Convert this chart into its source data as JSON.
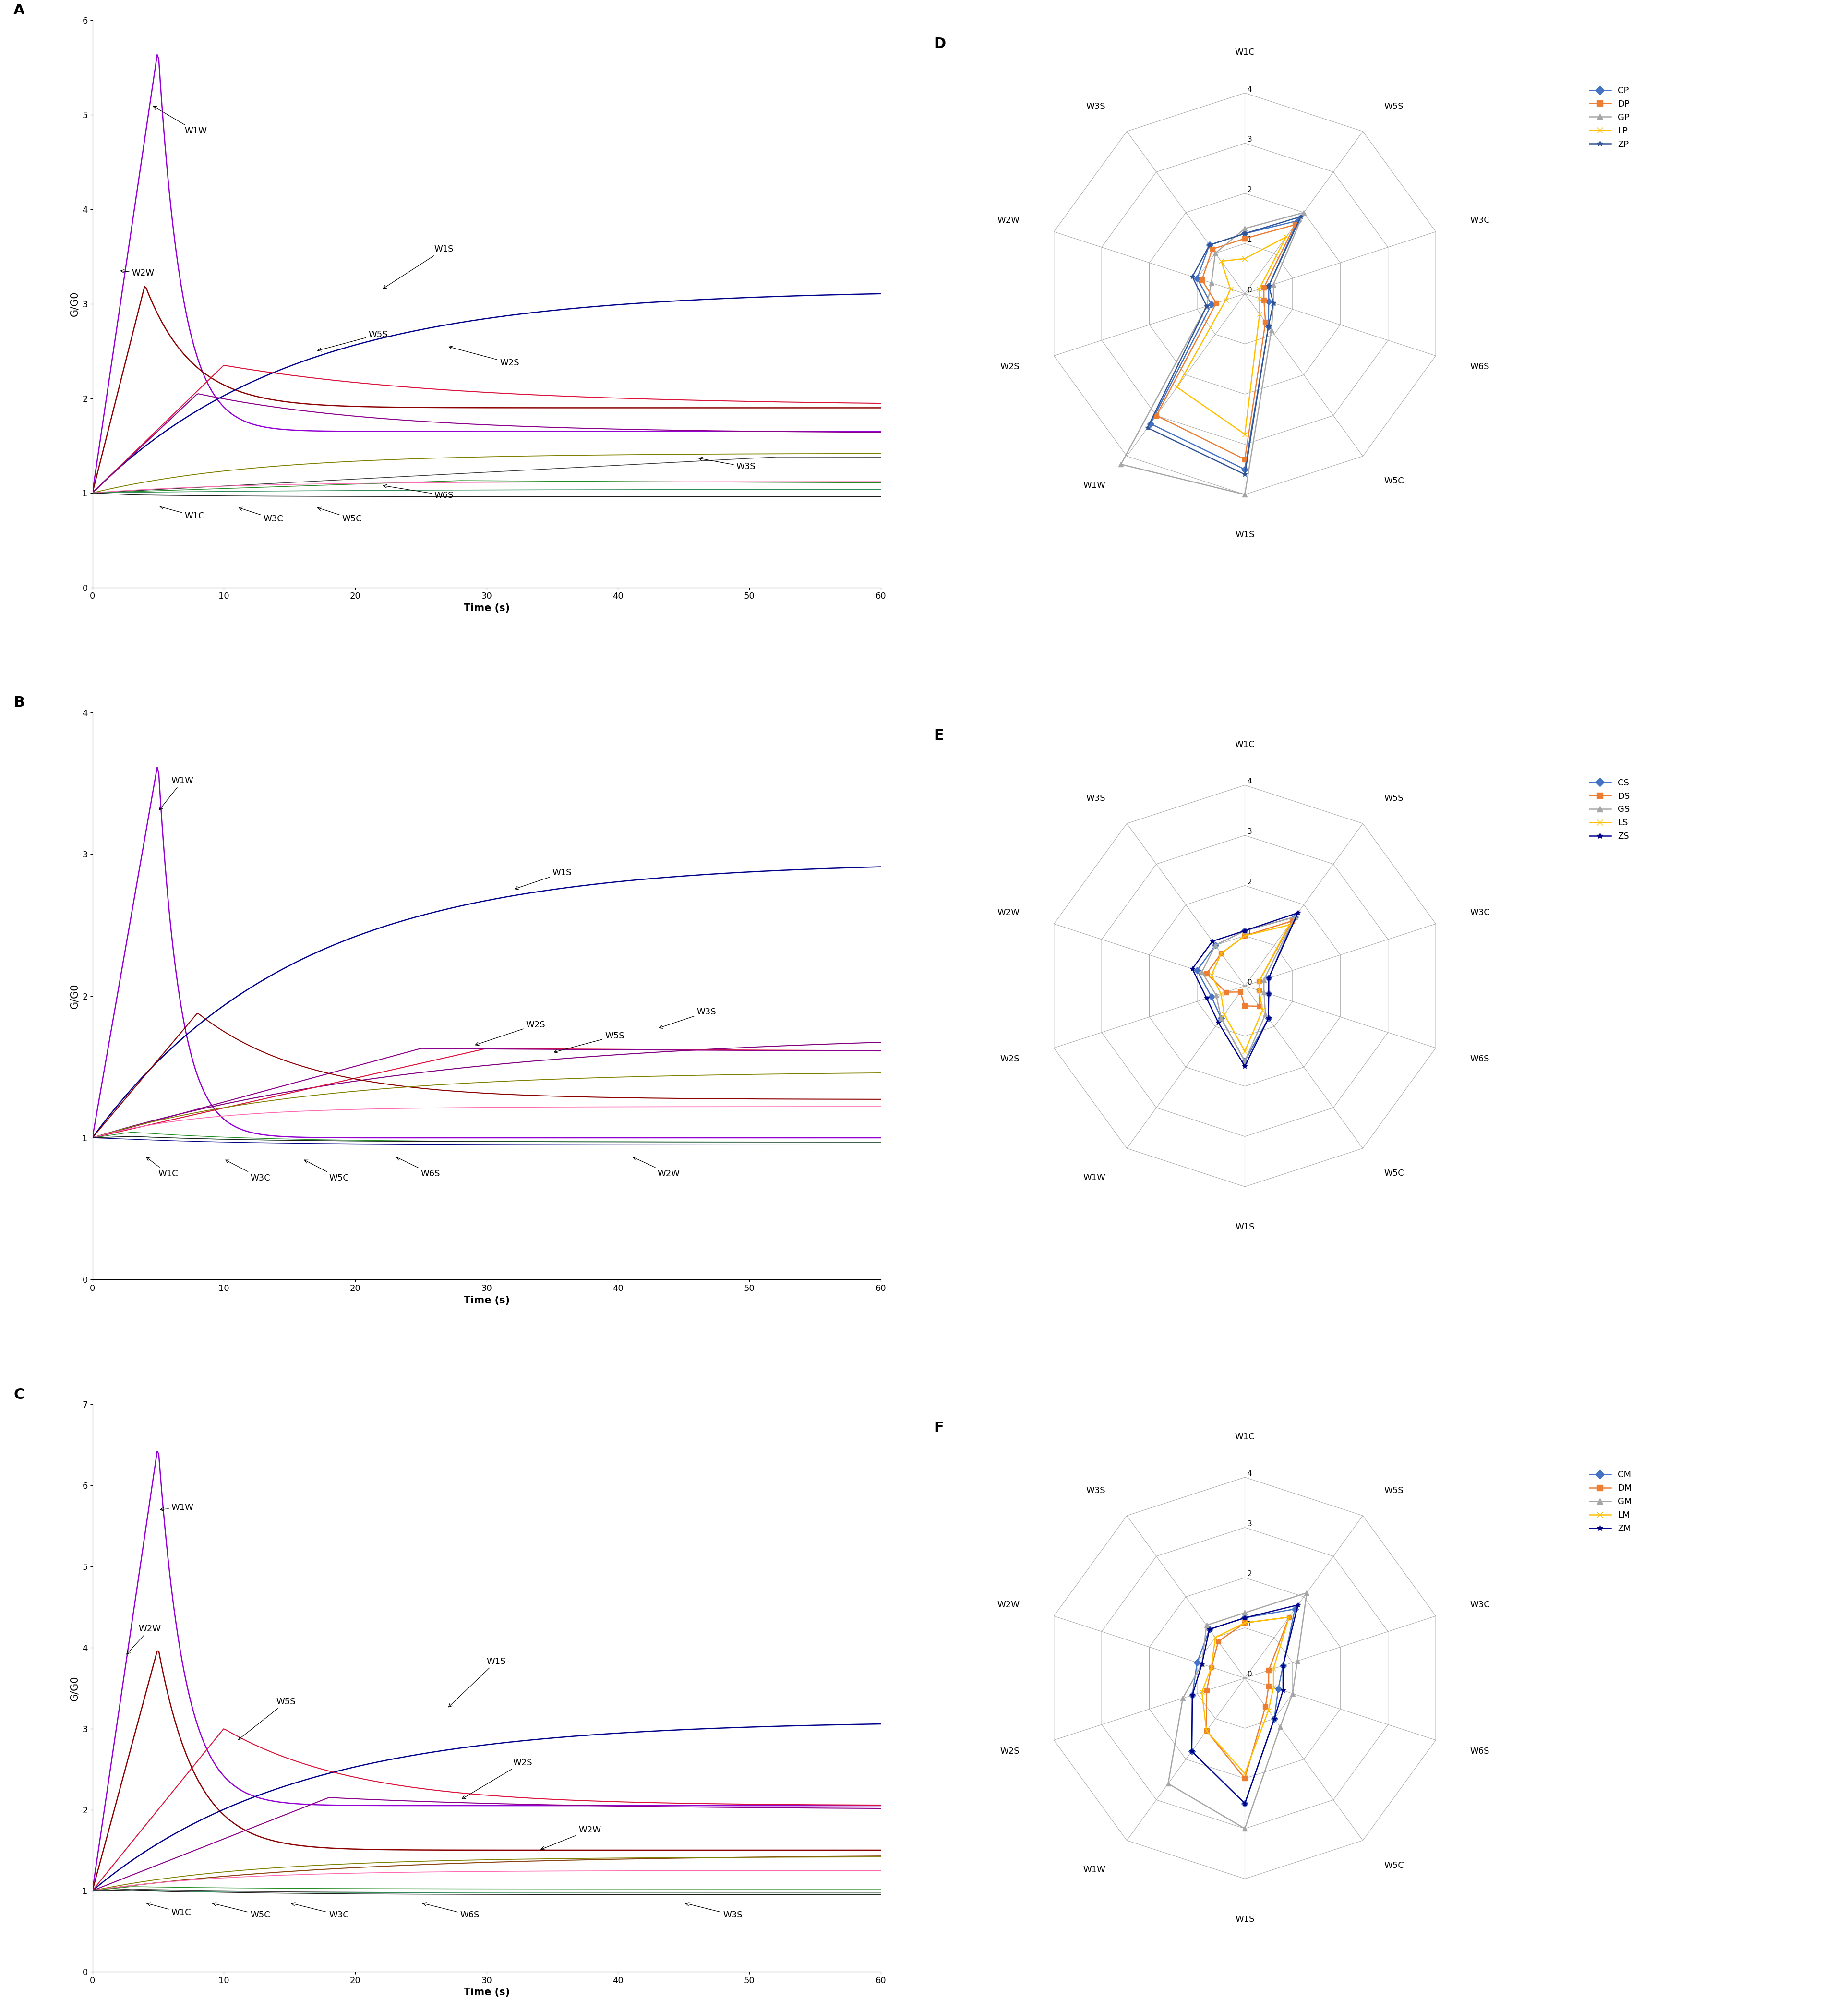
{
  "radar_labels": [
    "W1C",
    "W5S",
    "W3C",
    "W6S",
    "W5C",
    "W1S",
    "W1W",
    "W2S",
    "W2W",
    "W3S"
  ],
  "radar_D": {
    "CP": [
      1.2,
      1.8,
      0.5,
      0.5,
      0.8,
      3.5,
      3.2,
      0.7,
      1.0,
      1.2
    ],
    "DP": [
      1.1,
      1.7,
      0.4,
      0.4,
      0.7,
      3.3,
      3.0,
      0.6,
      0.9,
      1.1
    ],
    "GP": [
      1.3,
      2.0,
      0.6,
      0.6,
      0.9,
      4.0,
      4.2,
      0.8,
      0.7,
      1.0
    ],
    "LP": [
      0.7,
      1.4,
      0.3,
      0.3,
      0.5,
      2.8,
      2.3,
      0.4,
      0.3,
      0.8
    ],
    "ZP": [
      1.2,
      1.9,
      0.5,
      0.6,
      0.8,
      3.6,
      3.3,
      0.8,
      1.1,
      1.2
    ]
  },
  "radar_D_colors": {
    "CP": "#4472C4",
    "DP": "#ED7D31",
    "GP": "#A6A6A6",
    "LP": "#FFC000",
    "ZP": "#2F5496"
  },
  "radar_D_markers": {
    "CP": "D",
    "DP": "s",
    "GP": "^",
    "LP": "x",
    "ZP": "*"
  },
  "radar_E": {
    "CS": [
      1.1,
      1.7,
      0.5,
      0.5,
      0.8,
      1.5,
      0.8,
      0.7,
      1.0,
      1.0
    ],
    "DS": [
      1.0,
      1.6,
      0.3,
      0.3,
      0.5,
      0.4,
      0.15,
      0.4,
      0.8,
      0.8
    ],
    "GS": [
      1.1,
      1.7,
      0.4,
      0.4,
      0.7,
      1.5,
      0.8,
      0.6,
      0.9,
      1.0
    ],
    "LS": [
      1.0,
      1.5,
      0.3,
      0.3,
      0.6,
      1.3,
      0.7,
      0.5,
      0.7,
      0.8
    ],
    "ZS": [
      1.1,
      1.8,
      0.5,
      0.5,
      0.8,
      1.6,
      0.9,
      0.8,
      1.1,
      1.1
    ]
  },
  "radar_E_colors": {
    "CS": "#4472C4",
    "DS": "#ED7D31",
    "GS": "#A6A6A6",
    "LS": "#FFC000",
    "ZS": "#00008B"
  },
  "radar_E_markers": {
    "CS": "D",
    "DS": "s",
    "GS": "^",
    "LS": "x",
    "ZS": "*"
  },
  "radar_F": {
    "CM": [
      1.2,
      1.7,
      0.8,
      0.7,
      1.0,
      2.5,
      1.8,
      1.1,
      1.0,
      1.2
    ],
    "DM": [
      1.1,
      1.5,
      0.5,
      0.5,
      0.7,
      2.0,
      1.3,
      0.8,
      0.7,
      0.9
    ],
    "GM": [
      1.3,
      2.1,
      1.1,
      1.0,
      1.2,
      3.0,
      2.6,
      1.3,
      0.9,
      1.3
    ],
    "LM": [
      1.1,
      1.5,
      0.6,
      0.6,
      0.8,
      1.9,
      1.3,
      0.9,
      0.7,
      1.0
    ],
    "ZM": [
      1.2,
      1.8,
      0.8,
      0.8,
      1.0,
      2.5,
      1.8,
      1.1,
      0.9,
      1.2
    ]
  },
  "radar_F_colors": {
    "CM": "#4472C4",
    "DM": "#ED7D31",
    "GM": "#A6A6A6",
    "LM": "#FFC000",
    "ZM": "#00008B"
  },
  "radar_F_markers": {
    "CM": "D",
    "DM": "s",
    "GM": "^",
    "LM": "x",
    "ZM": "*"
  },
  "xlabel": "Time (s)",
  "ylabel": "G/G0"
}
